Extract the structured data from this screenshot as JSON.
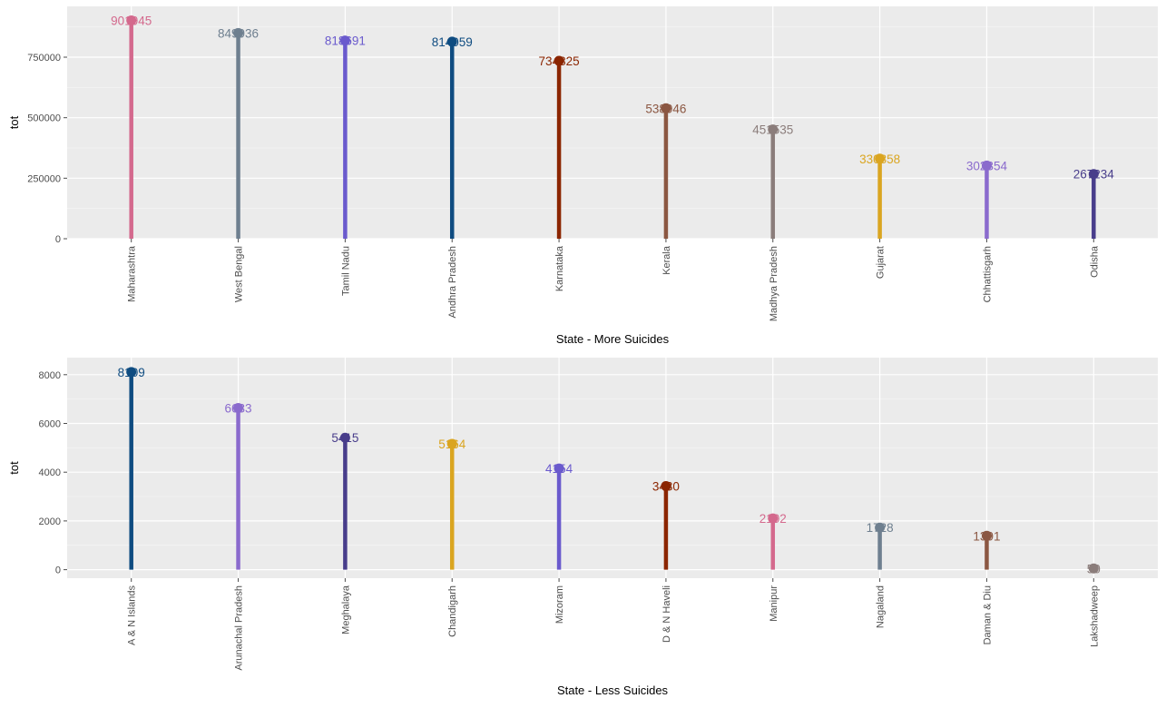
{
  "chart_data": [
    {
      "type": "lollipop",
      "title": "",
      "xlabel": "State - More Suicides",
      "ylabel": "tot",
      "ylim": [
        0,
        960000
      ],
      "yticks": [
        0,
        250000,
        500000,
        750000
      ],
      "grid": true,
      "legend": "none",
      "categories": [
        "Maharashtra",
        "West Bengal",
        "Tamil Nadu",
        "Andhra Pradesh",
        "Karnataka",
        "Kerala",
        "Madhya Pradesh",
        "Gujarat",
        "Chhattisgarh",
        "Odisha"
      ],
      "values": [
        901945,
        849936,
        818691,
        814059,
        734825,
        538946,
        451535,
        330858,
        302354,
        267234
      ],
      "labels": [
        "901945",
        "849936",
        "818691",
        "814059",
        "734825",
        "538946",
        "451535",
        "330858",
        "302354",
        "267234"
      ],
      "colors": [
        "#d4698d",
        "#6e7f8f",
        "#6a5acd",
        "#0f4c81",
        "#8b2500",
        "#8b5742",
        "#8b7d7b",
        "#daa520",
        "#8a6acd",
        "#483d8b"
      ]
    },
    {
      "type": "lollipop",
      "title": "",
      "xlabel": "State - Less Suicides",
      "ylabel": "tot",
      "ylim": [
        -350,
        8700
      ],
      "yticks": [
        0,
        2000,
        4000,
        6000,
        8000
      ],
      "grid": true,
      "legend": "none",
      "categories": [
        "A & N Islands",
        "Arunachal Pradesh",
        "Meghalaya",
        "Chandigarh",
        "Mizoram",
        "D & N Haveli",
        "Manipur",
        "Nagaland",
        "Daman & Diu",
        "Lakshadweep"
      ],
      "values": [
        8109,
        6633,
        5415,
        5164,
        4154,
        3430,
        2102,
        1728,
        1391,
        50
      ],
      "labels": [
        "8109",
        "6633",
        "5415",
        "5164",
        "4154",
        "3430",
        "2102",
        "1728",
        "1391",
        "50"
      ],
      "colors": [
        "#0f4c81",
        "#8a6acd",
        "#483d8b",
        "#daa520",
        "#6a5acd",
        "#8b2500",
        "#d4698d",
        "#6e7f8f",
        "#8b5742",
        "#8b7d7b"
      ]
    }
  ]
}
